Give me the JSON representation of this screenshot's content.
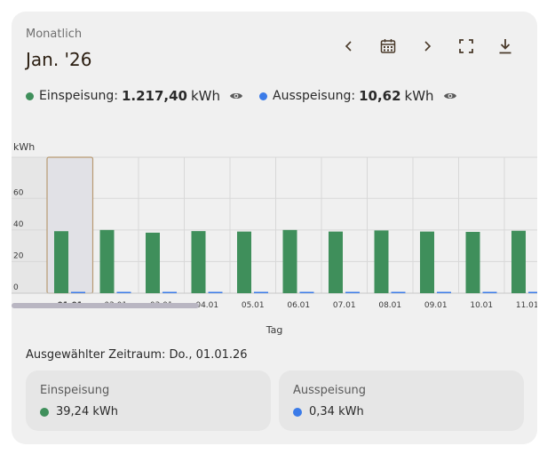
{
  "header": {
    "period_label": "Monatlich",
    "period_title": "Jan. '26"
  },
  "toolbar": {
    "icons": [
      "chevron-left-icon",
      "calendar-icon",
      "chevron-right-icon",
      "fullscreen-icon",
      "download-icon"
    ]
  },
  "legend": {
    "feed_in": {
      "label": "Einspeisung:",
      "value": "1.217,40",
      "unit": "kWh",
      "color": "#3f8f5b"
    },
    "feed_out": {
      "label": "Ausspeisung:",
      "value": "10,62",
      "unit": "kWh",
      "color": "#3b7be8"
    }
  },
  "chart_data": {
    "type": "bar",
    "ylabel": "kWh",
    "xlabel": "Tag",
    "yticks": [
      0,
      20,
      40,
      60
    ],
    "ylim": [
      0,
      80
    ],
    "categories": [
      "01.01",
      "02.01",
      "03.01",
      "04.01",
      "05.01",
      "06.01",
      "07.01",
      "08.01",
      "09.01",
      "10.01",
      "11.01"
    ],
    "series": [
      {
        "name": "Einspeisung",
        "color": "#3f8f5b",
        "values": [
          39.24,
          40.0,
          38.3,
          39.3,
          39.0,
          40.0,
          39.0,
          39.7,
          39.0,
          38.8,
          39.5
        ]
      },
      {
        "name": "Ausspeisung",
        "color": "#3b7be8",
        "values": [
          0.34,
          0.34,
          0.34,
          0.34,
          0.34,
          0.34,
          0.34,
          0.34,
          0.34,
          0.34,
          0.34
        ]
      }
    ],
    "selected_category": "01.01",
    "grid": true
  },
  "selected_range": "Ausgewählter Zeitraum: Do., 01.01.26",
  "summary": {
    "feed_in": {
      "title": "Einspeisung",
      "value": "39,24 kWh",
      "color": "#3f8f5b"
    },
    "feed_out": {
      "title": "Ausspeisung",
      "value": "0,34 kWh",
      "color": "#3b7be8"
    }
  }
}
